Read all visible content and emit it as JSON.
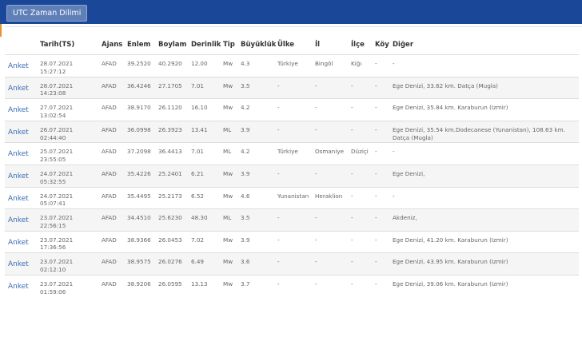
{
  "header": {
    "utc_button_label": "UTC Zaman Dilimi",
    "accent_color": "#1a4797"
  },
  "table": {
    "columns": [
      "",
      "Tarih(TS)",
      "Ajans",
      "Enlem",
      "Boylam",
      "Derinlik",
      "Tip",
      "Büyüklük",
      "Ülke",
      "İl",
      "İlçe",
      "Köy",
      "Diğer"
    ],
    "rows": [
      {
        "link": "Anket",
        "date": "28.07.2021",
        "time": "15:27:12",
        "agency": "AFAD",
        "lat": "39.2520",
        "lon": "40.2920",
        "depth": "12.00",
        "type": "Mw",
        "mag": "4.3",
        "country": "Türkiye",
        "province": "Bingöl",
        "district": "Kiğı",
        "village": "-",
        "other": "-"
      },
      {
        "link": "Anket",
        "date": "28.07.2021",
        "time": "14:23:08",
        "agency": "AFAD",
        "lat": "36.4246",
        "lon": "27.1705",
        "depth": "7.01",
        "type": "Mw",
        "mag": "3.5",
        "country": "-",
        "province": "-",
        "district": "-",
        "village": "-",
        "other": "Ege Denizi, 33.62 km. Datça (Mugla)"
      },
      {
        "link": "Anket",
        "date": "27.07.2021",
        "time": "13:02:54",
        "agency": "AFAD",
        "lat": "38.9170",
        "lon": "26.1120",
        "depth": "16.10",
        "type": "Mw",
        "mag": "4.2",
        "country": "-",
        "province": "-",
        "district": "-",
        "village": "-",
        "other": "Ege Denizi, 35.84 km. Karaburun (Izmir)"
      },
      {
        "link": "Anket",
        "date": "26.07.2021",
        "time": "02:44:40",
        "agency": "AFAD",
        "lat": "36.0998",
        "lon": "26.3923",
        "depth": "13.41",
        "type": "ML",
        "mag": "3.9",
        "country": "-",
        "province": "-",
        "district": "-",
        "village": "-",
        "other": "Ege Denizi, 35.54 km.Dodecanese (Yunanistan), 108.63 km. Datça (Mugla)"
      },
      {
        "link": "Anket",
        "date": "25.07.2021",
        "time": "23:55:05",
        "agency": "AFAD",
        "lat": "37.2098",
        "lon": "36.4413",
        "depth": "7.01",
        "type": "ML",
        "mag": "4.2",
        "country": "Türkiye",
        "province": "Osmaniye",
        "district": "Düziçi",
        "village": "-",
        "other": "-"
      },
      {
        "link": "Anket",
        "date": "24.07.2021",
        "time": "05:32:55",
        "agency": "AFAD",
        "lat": "35.4226",
        "lon": "25.2401",
        "depth": "6.21",
        "type": "Mw",
        "mag": "3.9",
        "country": "-",
        "province": "-",
        "district": "-",
        "village": "-",
        "other": "Ege Denizi,"
      },
      {
        "link": "Anket",
        "date": "24.07.2021",
        "time": "05:07:41",
        "agency": "AFAD",
        "lat": "35.4495",
        "lon": "25.2173",
        "depth": "6.52",
        "type": "Mw",
        "mag": "4.6",
        "country": "Yunanistan",
        "province": "Heraklion",
        "district": "-",
        "village": "-",
        "other": "-"
      },
      {
        "link": "Anket",
        "date": "23.07.2021",
        "time": "22:56:15",
        "agency": "AFAD",
        "lat": "34.4510",
        "lon": "25.6230",
        "depth": "48.30",
        "type": "ML",
        "mag": "3.5",
        "country": "-",
        "province": "-",
        "district": "-",
        "village": "-",
        "other": "Akdeniz,"
      },
      {
        "link": "Anket",
        "date": "23.07.2021",
        "time": "17:36:56",
        "agency": "AFAD",
        "lat": "38.9366",
        "lon": "26.0453",
        "depth": "7.02",
        "type": "Mw",
        "mag": "3.9",
        "country": "-",
        "province": "-",
        "district": "-",
        "village": "-",
        "other": "Ege Denizi, 41.20 km. Karaburun (Izmir)"
      },
      {
        "link": "Anket",
        "date": "23.07.2021",
        "time": "02:12:10",
        "agency": "AFAD",
        "lat": "38.9575",
        "lon": "26.0276",
        "depth": "6.49",
        "type": "Mw",
        "mag": "3.6",
        "country": "-",
        "province": "-",
        "district": "-",
        "village": "-",
        "other": "Ege Denizi, 43.95 km. Karaburun (Izmir)"
      },
      {
        "link": "Anket",
        "date": "23.07.2021",
        "time": "01:59:06",
        "agency": "AFAD",
        "lat": "38.9206",
        "lon": "26.0595",
        "depth": "13.13",
        "type": "Mw",
        "mag": "3.7",
        "country": "-",
        "province": "-",
        "district": "-",
        "village": "-",
        "other": "Ege Denizi, 39.06 km. Karaburun (Izmir)"
      }
    ]
  }
}
